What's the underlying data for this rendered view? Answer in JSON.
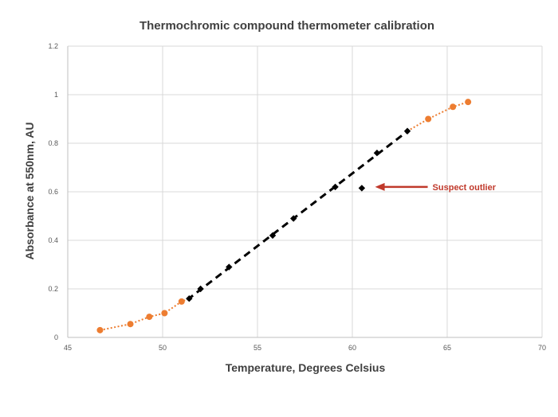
{
  "chart_data": {
    "type": "scatter",
    "title": "Thermochromic compound thermometer calibration",
    "xlabel": "Temperature, Degrees Celsius",
    "ylabel": "Absorbance at 550nm, AU",
    "xlim": [
      45,
      70
    ],
    "ylim": [
      0,
      1.2
    ],
    "x_ticks": [
      "45",
      "50",
      "55",
      "60",
      "65",
      "70"
    ],
    "y_ticks": [
      "0",
      "0.2",
      "0.4",
      "0.6",
      "0.8",
      "1",
      "1.2"
    ],
    "grid": true,
    "series": [
      {
        "marker": "circle",
        "color": "#ED7D31",
        "line": "dotted",
        "points": [
          [
            46.7,
            0.03
          ],
          [
            48.3,
            0.055
          ],
          [
            49.3,
            0.085
          ],
          [
            50.1,
            0.1
          ],
          [
            51.0,
            0.148
          ]
        ],
        "points_upper": [
          [
            64.0,
            0.9
          ],
          [
            65.3,
            0.95
          ],
          [
            66.1,
            0.97
          ]
        ]
      },
      {
        "marker": "diamond",
        "color": "#000000",
        "line": "dashed-trend",
        "points": [
          [
            51.4,
            0.16
          ],
          [
            52.0,
            0.2
          ],
          [
            53.5,
            0.29
          ],
          [
            55.8,
            0.42
          ],
          [
            56.9,
            0.49
          ],
          [
            59.1,
            0.62
          ],
          [
            60.5,
            0.615
          ],
          [
            61.3,
            0.76
          ],
          [
            62.9,
            0.85
          ]
        ],
        "trend": [
          [
            51.3,
            0.155
          ],
          [
            63.0,
            0.855
          ]
        ]
      }
    ],
    "annotation": {
      "text": "Suspect outlier",
      "color": "#C0392B",
      "points_to": [
        61.2,
        0.62
      ]
    }
  }
}
